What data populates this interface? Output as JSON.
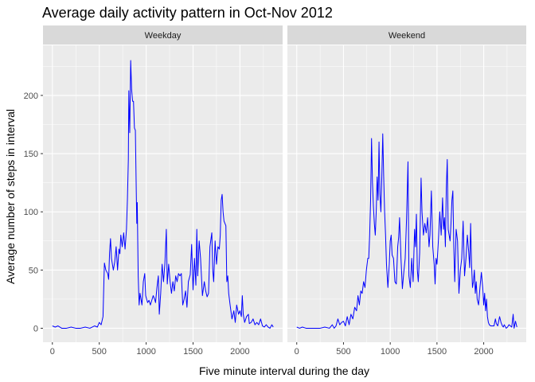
{
  "chart_data": {
    "type": "line",
    "title": "Average daily activity pattern in Oct-Nov 2012",
    "xlabel": "Five minute interval during the day",
    "ylabel": "Average number of steps in interval",
    "xlim": [
      -100,
      2455
    ],
    "ylim": [
      -12,
      243
    ],
    "x_ticks": [
      0,
      500,
      1000,
      1500,
      2000
    ],
    "y_ticks": [
      0,
      50,
      100,
      150,
      200
    ],
    "grid": true,
    "line_color": "#0000ff",
    "panel_bg": "#ebebeb",
    "strip_bg": "#d9d9d9",
    "panels": [
      {
        "label": "Weekday",
        "points": [
          [
            0,
            2
          ],
          [
            30,
            1
          ],
          [
            60,
            2
          ],
          [
            100,
            0
          ],
          [
            150,
            0
          ],
          [
            200,
            1
          ],
          [
            250,
            0
          ],
          [
            300,
            0
          ],
          [
            350,
            1
          ],
          [
            400,
            0
          ],
          [
            450,
            2
          ],
          [
            480,
            1
          ],
          [
            500,
            5
          ],
          [
            520,
            3
          ],
          [
            540,
            10
          ],
          [
            550,
            42
          ],
          [
            555,
            56
          ],
          [
            570,
            50
          ],
          [
            590,
            47
          ],
          [
            600,
            42
          ],
          [
            610,
            65
          ],
          [
            620,
            77
          ],
          [
            630,
            60
          ],
          [
            650,
            50
          ],
          [
            665,
            57
          ],
          [
            680,
            70
          ],
          [
            695,
            50
          ],
          [
            710,
            68
          ],
          [
            720,
            64
          ],
          [
            730,
            80
          ],
          [
            745,
            70
          ],
          [
            760,
            82
          ],
          [
            775,
            68
          ],
          [
            790,
            85
          ],
          [
            800,
            110
          ],
          [
            810,
            145
          ],
          [
            815,
            204
          ],
          [
            825,
            168
          ],
          [
            835,
            230
          ],
          [
            845,
            205
          ],
          [
            855,
            195
          ],
          [
            865,
            195
          ],
          [
            875,
            172
          ],
          [
            885,
            170
          ],
          [
            895,
            115
          ],
          [
            900,
            90
          ],
          [
            905,
            108
          ],
          [
            915,
            45
          ],
          [
            925,
            20
          ],
          [
            935,
            30
          ],
          [
            945,
            25
          ],
          [
            955,
            20
          ],
          [
            970,
            40
          ],
          [
            985,
            47
          ],
          [
            995,
            28
          ],
          [
            1005,
            25
          ],
          [
            1015,
            22
          ],
          [
            1030,
            24
          ],
          [
            1045,
            20
          ],
          [
            1060,
            24
          ],
          [
            1075,
            28
          ],
          [
            1090,
            25
          ],
          [
            1100,
            22
          ],
          [
            1115,
            35
          ],
          [
            1130,
            45
          ],
          [
            1140,
            12
          ],
          [
            1155,
            30
          ],
          [
            1170,
            55
          ],
          [
            1185,
            40
          ],
          [
            1200,
            56
          ],
          [
            1210,
            75
          ],
          [
            1215,
            85
          ],
          [
            1225,
            38
          ],
          [
            1240,
            55
          ],
          [
            1255,
            40
          ],
          [
            1270,
            30
          ],
          [
            1285,
            40
          ],
          [
            1300,
            32
          ],
          [
            1315,
            45
          ],
          [
            1330,
            40
          ],
          [
            1345,
            47
          ],
          [
            1360,
            45
          ],
          [
            1375,
            47
          ],
          [
            1390,
            20
          ],
          [
            1405,
            25
          ],
          [
            1420,
            32
          ],
          [
            1435,
            18
          ],
          [
            1450,
            40
          ],
          [
            1470,
            46
          ],
          [
            1485,
            72
          ],
          [
            1500,
            33
          ],
          [
            1515,
            60
          ],
          [
            1530,
            37
          ],
          [
            1540,
            85
          ],
          [
            1550,
            45
          ],
          [
            1565,
            75
          ],
          [
            1580,
            60
          ],
          [
            1600,
            28
          ],
          [
            1620,
            40
          ],
          [
            1635,
            32
          ],
          [
            1650,
            27
          ],
          [
            1665,
            30
          ],
          [
            1680,
            70
          ],
          [
            1700,
            82
          ],
          [
            1710,
            50
          ],
          [
            1720,
            40
          ],
          [
            1735,
            75
          ],
          [
            1750,
            55
          ],
          [
            1765,
            70
          ],
          [
            1780,
            68
          ],
          [
            1790,
            80
          ],
          [
            1800,
            110
          ],
          [
            1810,
            115
          ],
          [
            1820,
            100
          ],
          [
            1830,
            92
          ],
          [
            1850,
            88
          ],
          [
            1860,
            40
          ],
          [
            1870,
            45
          ],
          [
            1880,
            30
          ],
          [
            1895,
            20
          ],
          [
            1915,
            8
          ],
          [
            1935,
            15
          ],
          [
            1950,
            5
          ],
          [
            1965,
            20
          ],
          [
            1985,
            12
          ],
          [
            2000,
            15
          ],
          [
            2015,
            10
          ],
          [
            2025,
            28
          ],
          [
            2035,
            12
          ],
          [
            2050,
            5
          ],
          [
            2070,
            10
          ],
          [
            2090,
            12
          ],
          [
            2100,
            4
          ],
          [
            2120,
            5
          ],
          [
            2140,
            8
          ],
          [
            2160,
            3
          ],
          [
            2180,
            5
          ],
          [
            2200,
            3
          ],
          [
            2220,
            8
          ],
          [
            2240,
            2
          ],
          [
            2260,
            1
          ],
          [
            2280,
            3
          ],
          [
            2300,
            1
          ],
          [
            2320,
            0
          ],
          [
            2340,
            3
          ],
          [
            2355,
            1
          ]
        ]
      },
      {
        "label": "Weekend",
        "points": [
          [
            0,
            1
          ],
          [
            30,
            0
          ],
          [
            60,
            1
          ],
          [
            100,
            0
          ],
          [
            150,
            0
          ],
          [
            200,
            0
          ],
          [
            250,
            0
          ],
          [
            300,
            1
          ],
          [
            350,
            0
          ],
          [
            380,
            3
          ],
          [
            400,
            0
          ],
          [
            420,
            2
          ],
          [
            440,
            8
          ],
          [
            460,
            3
          ],
          [
            480,
            5
          ],
          [
            500,
            6
          ],
          [
            520,
            2
          ],
          [
            540,
            10
          ],
          [
            560,
            3
          ],
          [
            580,
            12
          ],
          [
            600,
            8
          ],
          [
            620,
            18
          ],
          [
            640,
            15
          ],
          [
            655,
            28
          ],
          [
            670,
            20
          ],
          [
            685,
            32
          ],
          [
            700,
            30
          ],
          [
            715,
            40
          ],
          [
            730,
            35
          ],
          [
            745,
            50
          ],
          [
            760,
            60
          ],
          [
            770,
            60
          ],
          [
            780,
            80
          ],
          [
            790,
            110
          ],
          [
            800,
            163
          ],
          [
            810,
            125
          ],
          [
            820,
            105
          ],
          [
            830,
            90
          ],
          [
            840,
            80
          ],
          [
            850,
            100
          ],
          [
            860,
            130
          ],
          [
            870,
            110
          ],
          [
            880,
            160
          ],
          [
            890,
            115
          ],
          [
            900,
            100
          ],
          [
            910,
            130
          ],
          [
            920,
            167
          ],
          [
            930,
            130
          ],
          [
            940,
            100
          ],
          [
            950,
            80
          ],
          [
            960,
            55
          ],
          [
            975,
            35
          ],
          [
            990,
            55
          ],
          [
            1000,
            75
          ],
          [
            1010,
            80
          ],
          [
            1020,
            63
          ],
          [
            1035,
            60
          ],
          [
            1050,
            40
          ],
          [
            1065,
            38
          ],
          [
            1080,
            70
          ],
          [
            1090,
            78
          ],
          [
            1100,
            95
          ],
          [
            1115,
            60
          ],
          [
            1130,
            34
          ],
          [
            1145,
            48
          ],
          [
            1160,
            60
          ],
          [
            1175,
            95
          ],
          [
            1190,
            143
          ],
          [
            1200,
            45
          ],
          [
            1215,
            35
          ],
          [
            1230,
            60
          ],
          [
            1245,
            40
          ],
          [
            1260,
            85
          ],
          [
            1270,
            70
          ],
          [
            1280,
            98
          ],
          [
            1290,
            50
          ],
          [
            1300,
            40
          ],
          [
            1315,
            65
          ],
          [
            1330,
            129
          ],
          [
            1340,
            100
          ],
          [
            1355,
            80
          ],
          [
            1370,
            90
          ],
          [
            1385,
            82
          ],
          [
            1400,
            95
          ],
          [
            1415,
            70
          ],
          [
            1425,
            80
          ],
          [
            1440,
            118
          ],
          [
            1455,
            70
          ],
          [
            1470,
            55
          ],
          [
            1480,
            38
          ],
          [
            1490,
            60
          ],
          [
            1500,
            55
          ],
          [
            1515,
            75
          ],
          [
            1530,
            100
          ],
          [
            1545,
            80
          ],
          [
            1560,
            112
          ],
          [
            1570,
            85
          ],
          [
            1580,
            95
          ],
          [
            1590,
            70
          ],
          [
            1600,
            120
          ],
          [
            1610,
            145
          ],
          [
            1620,
            85
          ],
          [
            1630,
            80
          ],
          [
            1640,
            75
          ],
          [
            1650,
            90
          ],
          [
            1660,
            110
          ],
          [
            1670,
            118
          ],
          [
            1680,
            70
          ],
          [
            1690,
            40
          ],
          [
            1705,
            85
          ],
          [
            1720,
            75
          ],
          [
            1735,
            30
          ],
          [
            1750,
            50
          ],
          [
            1765,
            60
          ],
          [
            1780,
            92
          ],
          [
            1795,
            45
          ],
          [
            1810,
            60
          ],
          [
            1825,
            80
          ],
          [
            1840,
            65
          ],
          [
            1850,
            52
          ],
          [
            1860,
            90
          ],
          [
            1870,
            55
          ],
          [
            1880,
            35
          ],
          [
            1890,
            40
          ],
          [
            1900,
            50
          ],
          [
            1910,
            30
          ],
          [
            1920,
            40
          ],
          [
            1930,
            25
          ],
          [
            1945,
            20
          ],
          [
            1960,
            35
          ],
          [
            1975,
            48
          ],
          [
            1990,
            35
          ],
          [
            2000,
            20
          ],
          [
            2010,
            30
          ],
          [
            2020,
            15
          ],
          [
            2030,
            25
          ],
          [
            2040,
            10
          ],
          [
            2050,
            5
          ],
          [
            2060,
            3
          ],
          [
            2075,
            2
          ],
          [
            2090,
            2
          ],
          [
            2110,
            2
          ],
          [
            2125,
            8
          ],
          [
            2135,
            4
          ],
          [
            2150,
            2
          ],
          [
            2170,
            10
          ],
          [
            2185,
            5
          ],
          [
            2200,
            2
          ],
          [
            2210,
            1
          ],
          [
            2220,
            3
          ],
          [
            2240,
            0
          ],
          [
            2255,
            1
          ],
          [
            2270,
            3
          ],
          [
            2285,
            2
          ],
          [
            2300,
            1
          ],
          [
            2315,
            12
          ],
          [
            2325,
            0
          ],
          [
            2340,
            6
          ],
          [
            2355,
            1
          ]
        ]
      }
    ]
  }
}
